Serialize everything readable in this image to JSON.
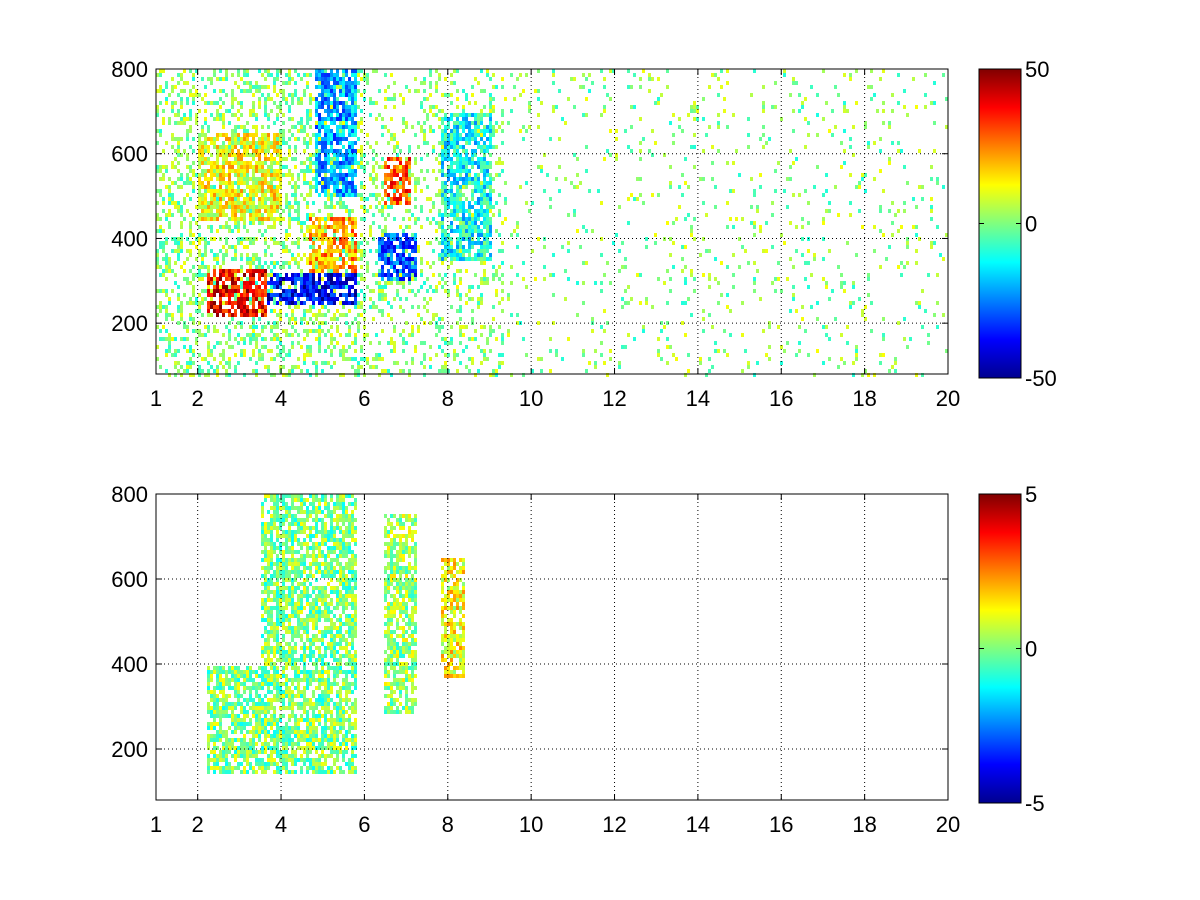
{
  "chart_data": [
    {
      "type": "heatmap",
      "title": "",
      "xlabel": "",
      "ylabel": "",
      "xlim": [
        1,
        20
      ],
      "ylim": [
        80,
        800
      ],
      "x_ticks": [
        1,
        2,
        4,
        6,
        8,
        10,
        12,
        14,
        16,
        18,
        20
      ],
      "y_ticks": [
        200,
        400,
        600,
        800
      ],
      "grid": true,
      "colormap": "jet",
      "colorbar": {
        "min": -50,
        "max": 50,
        "ticks": [
          50,
          0,
          -50
        ]
      },
      "features": [
        {
          "x_range": [
            2.2,
            3.6
          ],
          "y_range": [
            220,
            330
          ],
          "value": 38
        },
        {
          "x_range": [
            3.6,
            5.8
          ],
          "y_range": [
            250,
            320
          ],
          "value": -38
        },
        {
          "x_range": [
            4.6,
            5.8
          ],
          "y_range": [
            320,
            460
          ],
          "value": 22
        },
        {
          "x_range": [
            4.8,
            5.8
          ],
          "y_range": [
            500,
            800
          ],
          "value": -22
        },
        {
          "x_range": [
            2.0,
            4.0
          ],
          "y_range": [
            450,
            650
          ],
          "value": 12
        },
        {
          "x_range": [
            6.3,
            7.2
          ],
          "y_range": [
            300,
            420
          ],
          "value": -30
        },
        {
          "x_range": [
            6.4,
            7.1
          ],
          "y_range": [
            480,
            600
          ],
          "value": 30
        },
        {
          "x_range": [
            7.8,
            9.0
          ],
          "y_range": [
            350,
            700
          ],
          "value": -12
        }
      ]
    },
    {
      "type": "heatmap",
      "title": "",
      "xlabel": "",
      "ylabel": "",
      "xlim": [
        1,
        20
      ],
      "ylim": [
        80,
        800
      ],
      "x_ticks": [
        1,
        2,
        4,
        6,
        8,
        10,
        12,
        14,
        16,
        18,
        20
      ],
      "y_ticks": [
        200,
        400,
        600,
        800
      ],
      "grid": true,
      "colormap": "jet",
      "colorbar": {
        "min": -5,
        "max": 5,
        "ticks": [
          5,
          0,
          -5
        ]
      },
      "features": [
        {
          "x_range": [
            2.2,
            5.8
          ],
          "y_range": [
            150,
            400
          ],
          "value": 0
        },
        {
          "x_range": [
            3.5,
            5.8
          ],
          "y_range": [
            400,
            800
          ],
          "value": 0
        },
        {
          "x_range": [
            6.4,
            7.2
          ],
          "y_range": [
            290,
            760
          ],
          "value": 0.3
        },
        {
          "x_range": [
            7.8,
            8.4
          ],
          "y_range": [
            370,
            650
          ],
          "value": 1.2
        }
      ]
    }
  ]
}
